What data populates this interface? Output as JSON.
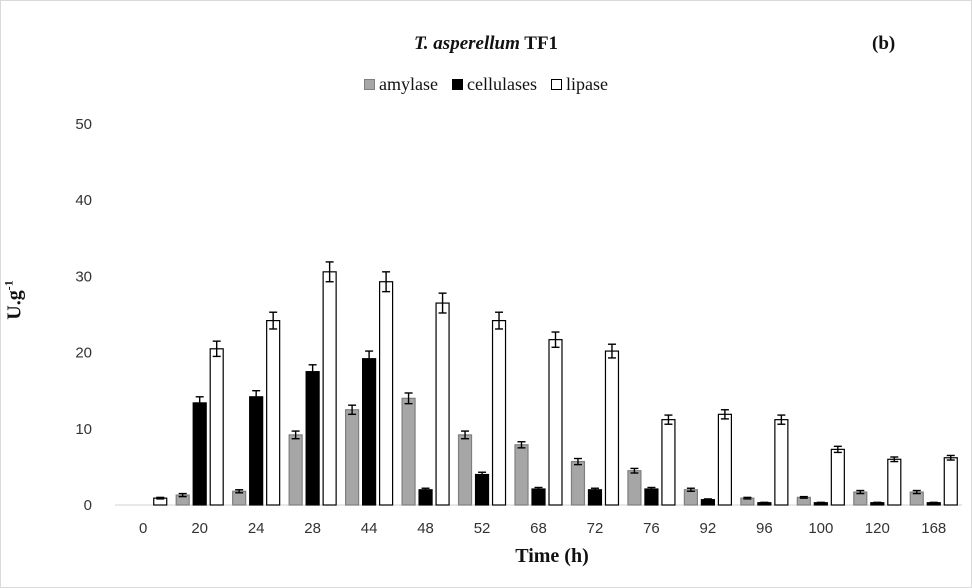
{
  "chart_data": {
    "type": "bar",
    "title_italic": "T. asperellum",
    "title_rest": "TF1",
    "panel_label": "(b)",
    "xlabel": "Time (h)",
    "ylabel_base": "U.g",
    "ylabel_sup": "-1",
    "ylim": [
      0,
      50
    ],
    "yticks": [
      0,
      10,
      20,
      30,
      40,
      50
    ],
    "grid": false,
    "legend_position": "top-center",
    "categories": [
      "0",
      "20",
      "24",
      "28",
      "44",
      "48",
      "52",
      "68",
      "72",
      "76",
      "92",
      "96",
      "100",
      "120",
      "168"
    ],
    "series": [
      {
        "name": "amylase",
        "color": "#a6a6a6",
        "border": "#7f7f7f",
        "values": [
          0,
          1.3,
          1.8,
          9.2,
          12.5,
          14.0,
          9.2,
          7.9,
          5.7,
          4.5,
          2.0,
          0.9,
          1.0,
          1.7,
          1.7
        ],
        "errors": [
          0,
          0.2,
          0.2,
          0.5,
          0.6,
          0.7,
          0.5,
          0.4,
          0.4,
          0.3,
          0.2,
          0.1,
          0.1,
          0.2,
          0.2
        ]
      },
      {
        "name": "cellulases",
        "color": "#000000",
        "border": "#000000",
        "values": [
          0,
          13.4,
          14.2,
          17.5,
          19.2,
          2.0,
          4.0,
          2.1,
          2.0,
          2.1,
          0.7,
          0.3,
          0.3,
          0.3,
          0.3
        ],
        "errors": [
          0,
          0.8,
          0.8,
          0.9,
          1.0,
          0.2,
          0.3,
          0.2,
          0.2,
          0.2,
          0.1,
          0.05,
          0.05,
          0.05,
          0.05
        ]
      },
      {
        "name": "lipase",
        "color": "#ffffff",
        "border": "#000000",
        "values": [
          0.9,
          20.5,
          24.2,
          30.6,
          29.3,
          26.5,
          24.2,
          21.7,
          20.2,
          11.2,
          11.9,
          11.2,
          7.3,
          6.0,
          6.2
        ],
        "errors": [
          0.1,
          1.0,
          1.1,
          1.3,
          1.3,
          1.3,
          1.1,
          1.0,
          0.9,
          0.6,
          0.6,
          0.6,
          0.4,
          0.3,
          0.3
        ]
      }
    ]
  }
}
